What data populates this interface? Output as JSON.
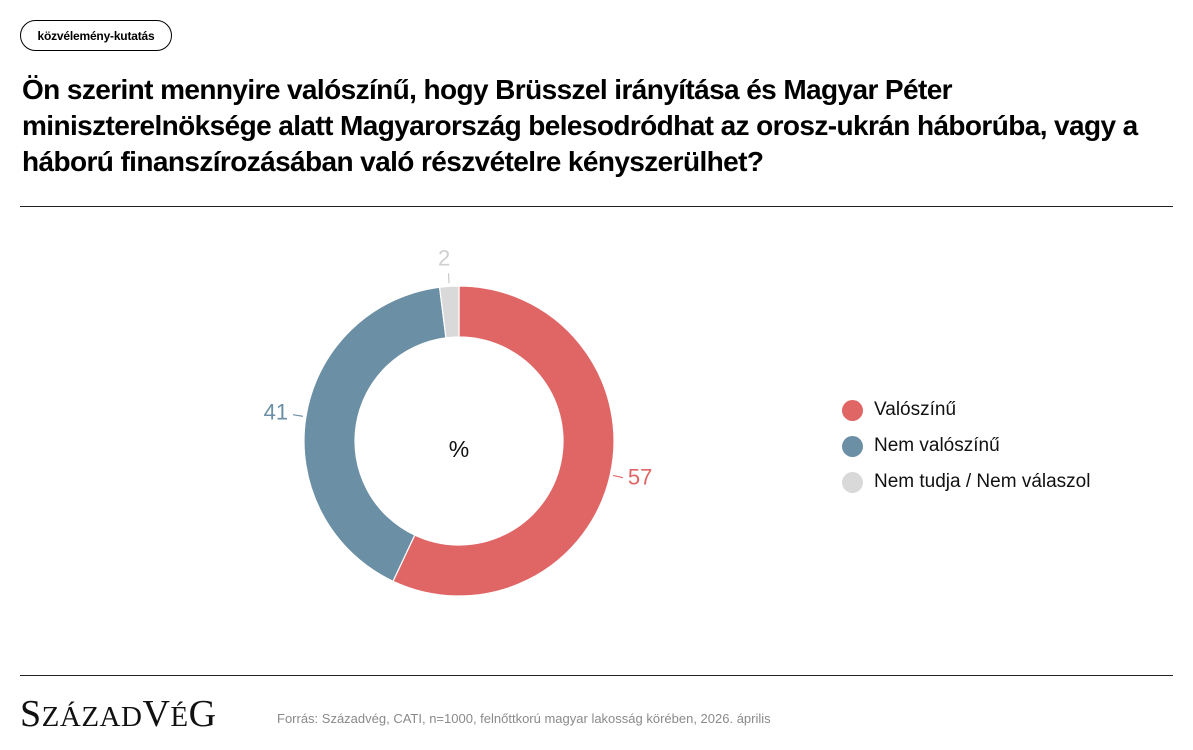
{
  "header": {
    "tag": "közvélemény-kutatás",
    "title": "Ön szerint mennyire valószínű, hogy Brüsszel irányítása és Magyar Péter miniszterelnöksége alatt Magyarország belesodródhat az orosz-ukrán háborúba, vagy a háború finanszírozásában való részvételre kényszerülhet?"
  },
  "chart_data": {
    "type": "pie",
    "variant": "donut",
    "center_label": "%",
    "slices": [
      {
        "label": "Valószínű",
        "value": 57,
        "value_label": "57",
        "color": "#e06666"
      },
      {
        "label": "Nem valószínű",
        "value": 41,
        "value_label": "41",
        "color": "#6b8fa4"
      },
      {
        "label": "Nem tudja / Nem válaszol",
        "value": 2,
        "value_label": "2",
        "color": "#d9d9d9"
      }
    ],
    "legend_position": "right"
  },
  "footer": {
    "logo": "SZÁZADVÉG",
    "source": "Forrás: Századvég, CATI, n=1000, felnőttkorú magyar lakosság körében, 2026. április"
  }
}
